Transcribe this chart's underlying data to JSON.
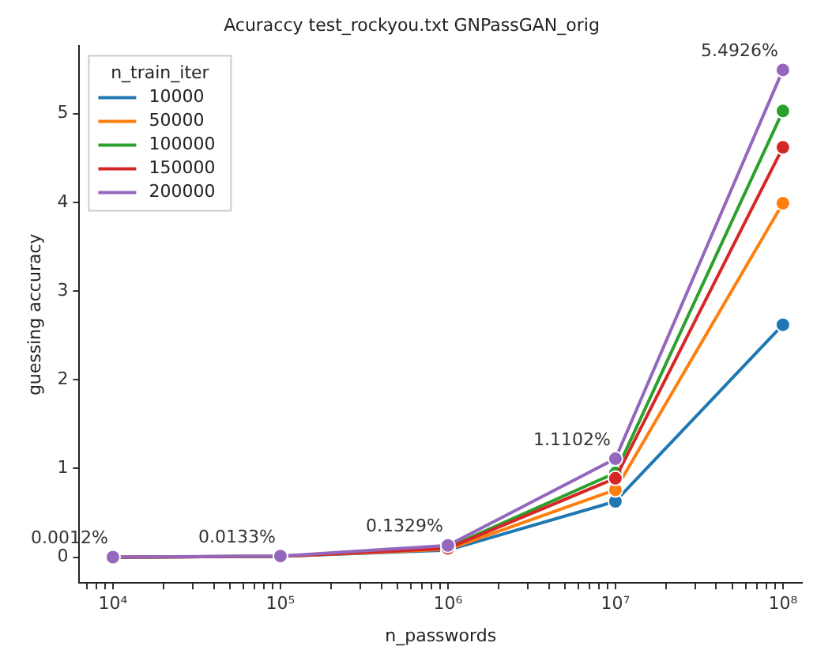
{
  "chart_data": {
    "type": "line",
    "title": "Acuraccy test_rockyou.txt GNPassGAN_orig",
    "xlabel": "n_passwords",
    "ylabel": "guessing accuracy",
    "legend_title": "n_train_iter",
    "legend": "top left",
    "grid": false,
    "marker": "circle",
    "log": "x",
    "x": [
      10000,
      100000,
      1000000,
      10000000,
      100000000
    ],
    "xlim": [
      6300,
      130000000
    ],
    "xticks": [
      {
        "value": 7000,
        "label": null
      },
      {
        "value": 8000,
        "label": null
      },
      {
        "value": 9000,
        "label": null
      },
      {
        "value": 10000,
        "label": "10⁴"
      },
      {
        "value": 20000,
        "label": null
      },
      {
        "value": 30000,
        "label": null
      },
      {
        "value": 40000,
        "label": null
      },
      {
        "value": 50000,
        "label": null
      },
      {
        "value": 60000,
        "label": null
      },
      {
        "value": 70000,
        "label": null
      },
      {
        "value": 80000,
        "label": null
      },
      {
        "value": 90000,
        "label": null
      },
      {
        "value": 100000,
        "label": "10⁵"
      },
      {
        "value": 200000,
        "label": null
      },
      {
        "value": 300000,
        "label": null
      },
      {
        "value": 400000,
        "label": null
      },
      {
        "value": 500000,
        "label": null
      },
      {
        "value": 600000,
        "label": null
      },
      {
        "value": 700000,
        "label": null
      },
      {
        "value": 800000,
        "label": null
      },
      {
        "value": 900000,
        "label": null
      },
      {
        "value": 1000000,
        "label": "10⁶"
      },
      {
        "value": 2000000,
        "label": null
      },
      {
        "value": 3000000,
        "label": null
      },
      {
        "value": 4000000,
        "label": null
      },
      {
        "value": 5000000,
        "label": null
      },
      {
        "value": 6000000,
        "label": null
      },
      {
        "value": 7000000,
        "label": null
      },
      {
        "value": 8000000,
        "label": null
      },
      {
        "value": 9000000,
        "label": null
      },
      {
        "value": 10000000,
        "label": "10⁷"
      },
      {
        "value": 20000000,
        "label": null
      },
      {
        "value": 30000000,
        "label": null
      },
      {
        "value": 40000000,
        "label": null
      },
      {
        "value": 50000000,
        "label": null
      },
      {
        "value": 60000000,
        "label": null
      },
      {
        "value": 70000000,
        "label": null
      },
      {
        "value": 80000000,
        "label": null
      },
      {
        "value": 90000000,
        "label": null
      },
      {
        "value": 100000000,
        "label": "10⁸"
      }
    ],
    "ylim": [
      -0.29,
      5.76
    ],
    "yticks": [
      0,
      1,
      2,
      3,
      4,
      5
    ],
    "series": [
      {
        "name": "10000",
        "color": "#1f77b4",
        "values": [
          0,
          0.01,
          0.08,
          0.63,
          2.62
        ]
      },
      {
        "name": "50000",
        "color": "#ff7f0e",
        "values": [
          0,
          0.01,
          0.09,
          0.76,
          3.99
        ]
      },
      {
        "name": "100000",
        "color": "#2ca02c",
        "values": [
          0,
          0.01,
          0.11,
          0.95,
          5.03
        ]
      },
      {
        "name": "150000",
        "color": "#d62728",
        "values": [
          0,
          0.01,
          0.1,
          0.89,
          4.62
        ]
      },
      {
        "name": "200000",
        "color": "#9467bd",
        "values": [
          0.0012,
          0.0133,
          0.1329,
          1.1102,
          5.4926
        ],
        "value_labels": [
          "0.0012%",
          "0.0133%",
          "0.1329%",
          "1.1102%",
          "5.4926%"
        ]
      }
    ]
  }
}
